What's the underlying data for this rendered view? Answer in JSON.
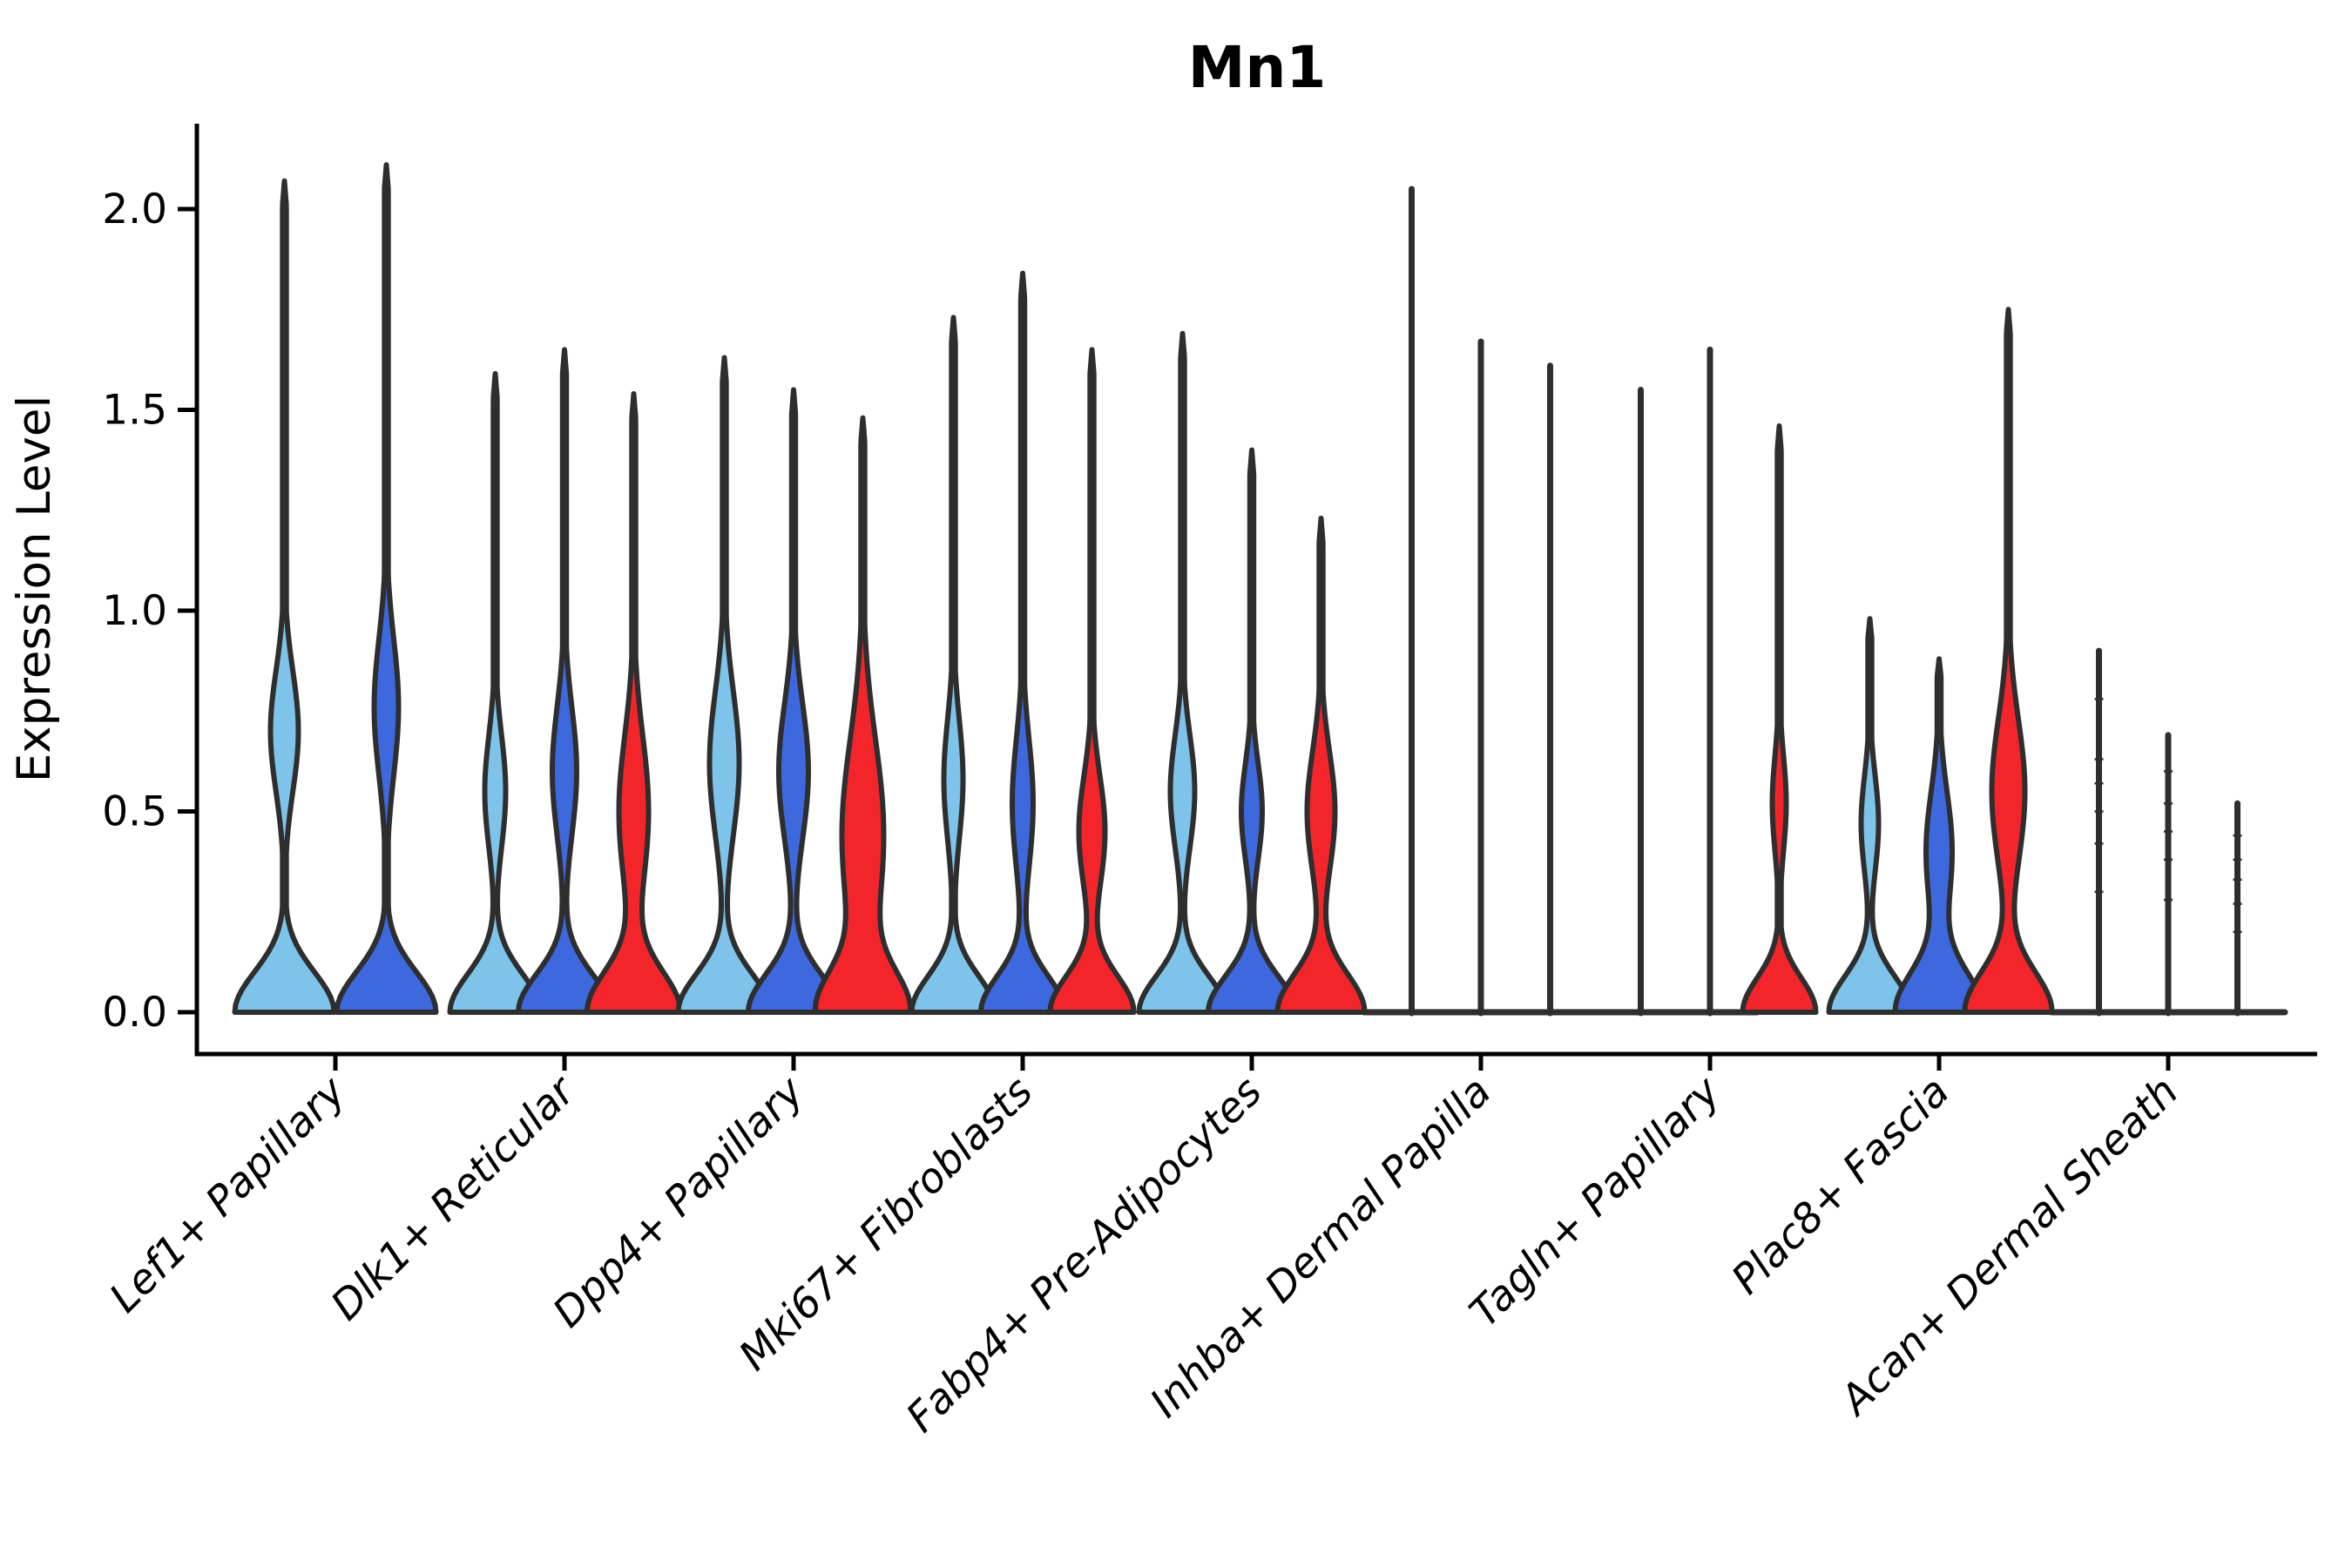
{
  "chart_data": {
    "type": "violin",
    "title": "Mn1",
    "ylabel": "Expression Level",
    "xlabel": "",
    "ylim": [
      0,
      2.21
    ],
    "grid": false,
    "legend": "none",
    "yticks": [
      {
        "value": 0.0,
        "label": "0.0"
      },
      {
        "value": 0.5,
        "label": "0.5"
      },
      {
        "value": 1.0,
        "label": "1.0"
      },
      {
        "value": 1.5,
        "label": "1.5"
      },
      {
        "value": 2.0,
        "label": "2.0"
      }
    ],
    "categories": [
      "Lef1+ Papillary",
      "Dlk1+ Reticular",
      "Dpp4+ Papillary",
      "Mki67+ Fibroblasts",
      "Fabp4+ Pre-Adipocytes",
      "Inhba+ Dermal Papilla",
      "Tagln+ Papillary",
      "Plac8+ Fascia",
      "Acan+ Dermal Sheath"
    ],
    "series_names": [
      "light_blue",
      "royal_blue",
      "red"
    ],
    "colors": {
      "light_blue": "#7EC4EA",
      "royal_blue": "#3E68DE",
      "red": "#F4252A",
      "outline": "#2E2E2E",
      "axis": "#000000",
      "text": "#000000"
    },
    "groups": [
      {
        "category": "Lef1+ Papillary",
        "violins": [
          {
            "series": "light_blue",
            "kind": "violin",
            "max": 2.07,
            "base_w": 57,
            "base_s": 0.1,
            "mid_w": 16,
            "mid_pos": 0.7,
            "mid_s": 0.15
          },
          {
            "series": "royal_blue",
            "kind": "violin",
            "max": 2.11,
            "base_w": 57,
            "base_s": 0.1,
            "mid_w": 14,
            "mid_pos": 0.76,
            "mid_s": 0.17
          }
        ]
      },
      {
        "category": "Dlk1+ Reticular",
        "violins": [
          {
            "series": "light_blue",
            "kind": "violin",
            "max": 1.59,
            "base_w": 52,
            "base_s": 0.095,
            "mid_w": 12,
            "mid_pos": 0.55,
            "mid_s": 0.14
          },
          {
            "series": "royal_blue",
            "kind": "violin",
            "max": 1.65,
            "base_w": 53,
            "base_s": 0.095,
            "mid_w": 14,
            "mid_pos": 0.6,
            "mid_s": 0.16
          },
          {
            "series": "red",
            "kind": "violin",
            "max": 1.54,
            "base_w": 53,
            "base_s": 0.1,
            "mid_w": 17,
            "mid_pos": 0.5,
            "mid_s": 0.19
          }
        ]
      },
      {
        "category": "Dpp4+ Papillary",
        "violins": [
          {
            "series": "light_blue",
            "kind": "violin",
            "max": 1.63,
            "base_w": 53,
            "base_s": 0.095,
            "mid_w": 17,
            "mid_pos": 0.62,
            "mid_s": 0.18
          },
          {
            "series": "royal_blue",
            "kind": "violin",
            "max": 1.55,
            "base_w": 52,
            "base_s": 0.095,
            "mid_w": 17,
            "mid_pos": 0.6,
            "mid_s": 0.17
          },
          {
            "series": "red",
            "kind": "violin",
            "max": 1.48,
            "base_w": 50,
            "base_s": 0.1,
            "mid_w": 24,
            "mid_pos": 0.44,
            "mid_s": 0.24
          }
        ]
      },
      {
        "category": "Mki67+ Fibroblasts",
        "violins": [
          {
            "series": "light_blue",
            "kind": "violin",
            "max": 1.73,
            "base_w": 48,
            "base_s": 0.09,
            "mid_w": 11,
            "mid_pos": 0.58,
            "mid_s": 0.15
          },
          {
            "series": "royal_blue",
            "kind": "violin",
            "max": 1.84,
            "base_w": 48,
            "base_s": 0.09,
            "mid_w": 12,
            "mid_pos": 0.52,
            "mid_s": 0.16
          },
          {
            "series": "red",
            "kind": "violin",
            "max": 1.65,
            "base_w": 48,
            "base_s": 0.09,
            "mid_w": 15,
            "mid_pos": 0.45,
            "mid_s": 0.14
          }
        ]
      },
      {
        "category": "Fabp4+ Pre-Adipocytes",
        "violins": [
          {
            "series": "light_blue",
            "kind": "violin",
            "max": 1.69,
            "base_w": 50,
            "base_s": 0.09,
            "mid_w": 14,
            "mid_pos": 0.55,
            "mid_s": 0.14
          },
          {
            "series": "royal_blue",
            "kind": "violin",
            "max": 1.4,
            "base_w": 50,
            "base_s": 0.09,
            "mid_w": 12,
            "mid_pos": 0.5,
            "mid_s": 0.12
          },
          {
            "series": "red",
            "kind": "violin",
            "max": 1.23,
            "base_w": 50,
            "base_s": 0.095,
            "mid_w": 16,
            "mid_pos": 0.5,
            "mid_s": 0.15
          }
        ]
      },
      {
        "category": "Inhba+ Dermal Papilla",
        "violins": [
          {
            "series": "light_blue",
            "kind": "spike",
            "max": 2.05
          },
          {
            "series": "royal_blue",
            "kind": "spike",
            "max": 1.67
          },
          {
            "series": "red",
            "kind": "spike",
            "max": 1.61
          }
        ]
      },
      {
        "category": "Tagln+ Papillary",
        "violins": [
          {
            "series": "light_blue",
            "kind": "spike",
            "max": 1.55
          },
          {
            "series": "royal_blue",
            "kind": "spike",
            "max": 1.65
          },
          {
            "series": "red",
            "kind": "violin",
            "max": 1.46,
            "base_w": 42,
            "base_s": 0.085,
            "mid_w": 8,
            "mid_pos": 0.52,
            "mid_s": 0.12
          }
        ]
      },
      {
        "category": "Plac8+ Fascia",
        "violins": [
          {
            "series": "light_blue",
            "kind": "violin",
            "max": 0.98,
            "base_w": 47,
            "base_s": 0.09,
            "mid_w": 10,
            "mid_pos": 0.47,
            "mid_s": 0.12
          },
          {
            "series": "royal_blue",
            "kind": "violin",
            "max": 0.88,
            "base_w": 50,
            "base_s": 0.1,
            "mid_w": 15,
            "mid_pos": 0.4,
            "mid_s": 0.15
          },
          {
            "series": "red",
            "kind": "violin",
            "max": 1.75,
            "base_w": 50,
            "base_s": 0.1,
            "mid_w": 19,
            "mid_pos": 0.55,
            "mid_s": 0.18
          }
        ]
      },
      {
        "category": "Acan+ Dermal Sheath",
        "violins": [
          {
            "series": "light_blue",
            "kind": "spike",
            "max": 0.9,
            "points": [
              0.3,
              0.42,
              0.5,
              0.57,
              0.63,
              0.78
            ]
          },
          {
            "series": "royal_blue",
            "kind": "spike",
            "max": 0.69,
            "points": [
              0.28,
              0.38,
              0.45,
              0.52,
              0.6
            ]
          },
          {
            "series": "red",
            "kind": "spike",
            "max": 0.52,
            "points": [
              0.2,
              0.27,
              0.33,
              0.38,
              0.44
            ]
          }
        ]
      }
    ]
  }
}
